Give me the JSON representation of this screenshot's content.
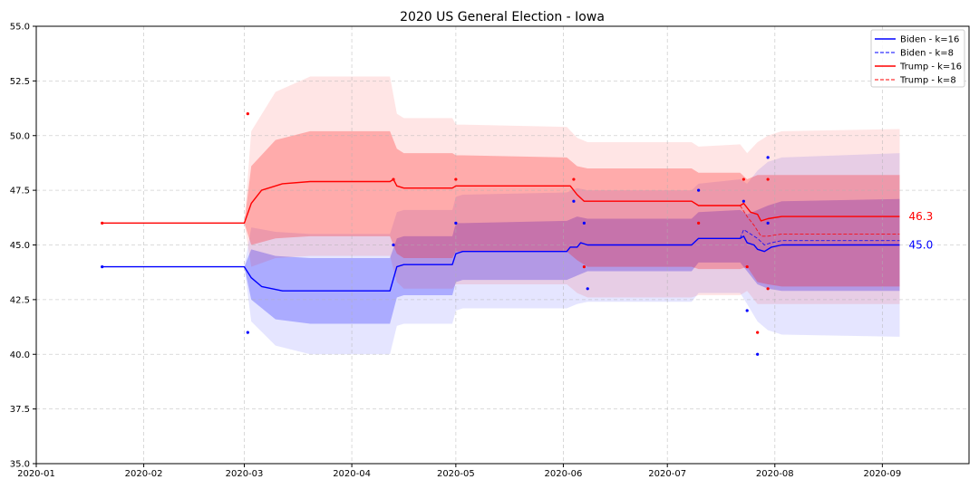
{
  "chart_data": {
    "type": "line",
    "title": "2020 US General Election - Iowa",
    "xlabel": "",
    "ylabel": "",
    "x_range": [
      "2020-01-01",
      "2020-09-26"
    ],
    "ylim": [
      35.0,
      55.0
    ],
    "x_ticks": [
      "2020-01",
      "2020-02",
      "2020-03",
      "2020-04",
      "2020-05",
      "2020-06",
      "2020-07",
      "2020-08",
      "2020-09"
    ],
    "x_tick_dates": [
      "2020-01-01",
      "2020-02-01",
      "2020-03-01",
      "2020-04-01",
      "2020-05-01",
      "2020-06-01",
      "2020-07-01",
      "2020-08-01",
      "2020-09-01"
    ],
    "y_ticks": [
      "35.0",
      "37.5",
      "40.0",
      "42.5",
      "45.0",
      "47.5",
      "50.0",
      "52.5",
      "55.0"
    ],
    "grid": true,
    "legend_position": "top-right",
    "colors": {
      "biden": "#0000ff",
      "trump": "#ff0000"
    },
    "series": [
      {
        "name": "Biden - k=16",
        "color": "#0000ff",
        "style": "solid",
        "points": [
          [
            "2020-01-20",
            44.0
          ],
          [
            "2020-03-01",
            44.0
          ],
          [
            "2020-03-03",
            43.5
          ],
          [
            "2020-03-06",
            43.1
          ],
          [
            "2020-03-12",
            42.9
          ],
          [
            "2020-04-12",
            42.9
          ],
          [
            "2020-04-14",
            44.0
          ],
          [
            "2020-04-16",
            44.1
          ],
          [
            "2020-04-30",
            44.1
          ],
          [
            "2020-05-01",
            44.6
          ],
          [
            "2020-05-03",
            44.7
          ],
          [
            "2020-06-02",
            44.7
          ],
          [
            "2020-06-03",
            44.9
          ],
          [
            "2020-06-05",
            44.9
          ],
          [
            "2020-06-06",
            45.1
          ],
          [
            "2020-06-08",
            45.0
          ],
          [
            "2020-07-08",
            45.0
          ],
          [
            "2020-07-10",
            45.3
          ],
          [
            "2020-07-22",
            45.3
          ],
          [
            "2020-07-23",
            45.4
          ],
          [
            "2020-07-24",
            45.1
          ],
          [
            "2020-07-26",
            45.0
          ],
          [
            "2020-07-27",
            44.8
          ],
          [
            "2020-07-29",
            44.7
          ],
          [
            "2020-07-31",
            44.9
          ],
          [
            "2020-08-03",
            45.0
          ],
          [
            "2020-09-06",
            45.0
          ]
        ]
      },
      {
        "name": "Biden - k=8",
        "color": "#0000ff",
        "style": "dashed",
        "points": [
          [
            "2020-07-22",
            45.3
          ],
          [
            "2020-07-23",
            45.7
          ],
          [
            "2020-07-25",
            45.5
          ],
          [
            "2020-07-27",
            45.3
          ],
          [
            "2020-07-29",
            45.0
          ],
          [
            "2020-07-31",
            45.1
          ],
          [
            "2020-08-03",
            45.2
          ],
          [
            "2020-09-06",
            45.2
          ]
        ]
      },
      {
        "name": "Trump - k=16",
        "color": "#ff0000",
        "style": "solid",
        "points": [
          [
            "2020-01-20",
            46.0
          ],
          [
            "2020-03-01",
            46.0
          ],
          [
            "2020-03-03",
            46.9
          ],
          [
            "2020-03-06",
            47.5
          ],
          [
            "2020-03-12",
            47.8
          ],
          [
            "2020-03-20",
            47.9
          ],
          [
            "2020-04-12",
            47.9
          ],
          [
            "2020-04-13",
            48.0
          ],
          [
            "2020-04-14",
            47.7
          ],
          [
            "2020-04-16",
            47.6
          ],
          [
            "2020-04-30",
            47.6
          ],
          [
            "2020-05-01",
            47.7
          ],
          [
            "2020-05-03",
            47.7
          ],
          [
            "2020-06-03",
            47.7
          ],
          [
            "2020-06-05",
            47.3
          ],
          [
            "2020-06-07",
            47.0
          ],
          [
            "2020-07-08",
            47.0
          ],
          [
            "2020-07-10",
            46.8
          ],
          [
            "2020-07-22",
            46.8
          ],
          [
            "2020-07-23",
            46.9
          ],
          [
            "2020-07-25",
            46.5
          ],
          [
            "2020-07-27",
            46.4
          ],
          [
            "2020-07-28",
            46.1
          ],
          [
            "2020-07-30",
            46.2
          ],
          [
            "2020-08-03",
            46.3
          ],
          [
            "2020-09-06",
            46.3
          ]
        ]
      },
      {
        "name": "Trump - k=8",
        "color": "#ff0000",
        "style": "dashed",
        "points": [
          [
            "2020-07-22",
            46.8
          ],
          [
            "2020-07-24",
            46.3
          ],
          [
            "2020-07-26",
            45.9
          ],
          [
            "2020-07-28",
            45.4
          ],
          [
            "2020-07-30",
            45.4
          ],
          [
            "2020-08-03",
            45.5
          ],
          [
            "2020-09-06",
            45.5
          ]
        ]
      }
    ],
    "bands": [
      {
        "color": "#0000ff",
        "opacity": 0.25,
        "points": [
          [
            "2020-01-20",
            44.0,
            44.0
          ],
          [
            "2020-03-01",
            44.0,
            44.0
          ],
          [
            "2020-03-03",
            42.5,
            44.8
          ],
          [
            "2020-03-10",
            41.6,
            44.5
          ],
          [
            "2020-03-20",
            41.4,
            44.4
          ],
          [
            "2020-04-12",
            41.4,
            44.4
          ],
          [
            "2020-04-14",
            42.6,
            45.3
          ],
          [
            "2020-04-16",
            42.7,
            45.4
          ],
          [
            "2020-04-30",
            42.7,
            45.4
          ],
          [
            "2020-05-01",
            43.3,
            46.0
          ],
          [
            "2020-05-03",
            43.4,
            46.0
          ],
          [
            "2020-06-02",
            43.4,
            46.1
          ],
          [
            "2020-06-05",
            43.6,
            46.3
          ],
          [
            "2020-06-08",
            43.8,
            46.2
          ],
          [
            "2020-07-08",
            43.8,
            46.2
          ],
          [
            "2020-07-10",
            44.2,
            46.5
          ],
          [
            "2020-07-22",
            44.2,
            46.6
          ],
          [
            "2020-07-24",
            43.8,
            46.4
          ],
          [
            "2020-07-27",
            43.2,
            46.6
          ],
          [
            "2020-07-30",
            43.0,
            46.8
          ],
          [
            "2020-08-03",
            42.9,
            47.0
          ],
          [
            "2020-09-06",
            42.9,
            47.1
          ]
        ]
      },
      {
        "color": "#0000ff",
        "opacity": 0.1,
        "points": [
          [
            "2020-01-20",
            44.0,
            44.0
          ],
          [
            "2020-03-01",
            44.0,
            44.0
          ],
          [
            "2020-03-03",
            41.5,
            45.8
          ],
          [
            "2020-03-10",
            40.4,
            45.6
          ],
          [
            "2020-03-20",
            40.0,
            45.5
          ],
          [
            "2020-04-12",
            40.0,
            45.5
          ],
          [
            "2020-04-14",
            41.3,
            46.5
          ],
          [
            "2020-04-16",
            41.4,
            46.6
          ],
          [
            "2020-04-30",
            41.4,
            46.6
          ],
          [
            "2020-05-01",
            42.0,
            47.2
          ],
          [
            "2020-05-03",
            42.1,
            47.3
          ],
          [
            "2020-06-02",
            42.1,
            47.4
          ],
          [
            "2020-06-05",
            42.3,
            47.6
          ],
          [
            "2020-06-08",
            42.4,
            47.5
          ],
          [
            "2020-07-08",
            42.4,
            47.5
          ],
          [
            "2020-07-10",
            42.8,
            47.8
          ],
          [
            "2020-07-22",
            42.8,
            48.0
          ],
          [
            "2020-07-24",
            42.3,
            47.8
          ],
          [
            "2020-07-27",
            41.5,
            48.4
          ],
          [
            "2020-07-30",
            41.1,
            48.8
          ],
          [
            "2020-08-03",
            40.9,
            49.0
          ],
          [
            "2020-09-06",
            40.8,
            49.2
          ]
        ]
      },
      {
        "color": "#ff0000",
        "opacity": 0.25,
        "points": [
          [
            "2020-01-20",
            46.0,
            46.0
          ],
          [
            "2020-03-01",
            46.0,
            46.0
          ],
          [
            "2020-03-03",
            45.0,
            48.6
          ],
          [
            "2020-03-10",
            45.3,
            49.8
          ],
          [
            "2020-03-20",
            45.4,
            50.2
          ],
          [
            "2020-04-12",
            45.4,
            50.2
          ],
          [
            "2020-04-14",
            44.6,
            49.4
          ],
          [
            "2020-04-16",
            44.4,
            49.2
          ],
          [
            "2020-04-30",
            44.4,
            49.2
          ],
          [
            "2020-05-01",
            44.7,
            49.1
          ],
          [
            "2020-05-03",
            44.7,
            49.1
          ],
          [
            "2020-06-02",
            44.7,
            49.0
          ],
          [
            "2020-06-05",
            44.3,
            48.6
          ],
          [
            "2020-06-08",
            44.0,
            48.5
          ],
          [
            "2020-07-08",
            44.0,
            48.5
          ],
          [
            "2020-07-10",
            43.9,
            48.3
          ],
          [
            "2020-07-22",
            43.9,
            48.3
          ],
          [
            "2020-07-24",
            44.0,
            48.0
          ],
          [
            "2020-07-27",
            43.3,
            48.2
          ],
          [
            "2020-07-30",
            43.2,
            48.2
          ],
          [
            "2020-08-03",
            43.1,
            48.2
          ],
          [
            "2020-09-06",
            43.1,
            48.2
          ]
        ]
      },
      {
        "color": "#ff0000",
        "opacity": 0.1,
        "points": [
          [
            "2020-01-20",
            46.0,
            46.0
          ],
          [
            "2020-03-01",
            46.0,
            46.0
          ],
          [
            "2020-03-03",
            44.0,
            50.2
          ],
          [
            "2020-03-10",
            44.4,
            52.0
          ],
          [
            "2020-03-20",
            44.5,
            52.7
          ],
          [
            "2020-04-12",
            44.5,
            52.7
          ],
          [
            "2020-04-14",
            43.3,
            51.0
          ],
          [
            "2020-04-16",
            43.0,
            50.8
          ],
          [
            "2020-04-30",
            43.0,
            50.8
          ],
          [
            "2020-05-01",
            43.2,
            50.5
          ],
          [
            "2020-05-03",
            43.2,
            50.5
          ],
          [
            "2020-06-02",
            43.2,
            50.4
          ],
          [
            "2020-06-05",
            42.8,
            49.9
          ],
          [
            "2020-06-08",
            42.6,
            49.7
          ],
          [
            "2020-07-08",
            42.6,
            49.7
          ],
          [
            "2020-07-10",
            42.7,
            49.5
          ],
          [
            "2020-07-22",
            42.7,
            49.6
          ],
          [
            "2020-07-24",
            42.9,
            49.2
          ],
          [
            "2020-07-27",
            42.3,
            49.7
          ],
          [
            "2020-07-30",
            42.3,
            50.0
          ],
          [
            "2020-08-03",
            42.3,
            50.2
          ],
          [
            "2020-09-06",
            42.3,
            50.3
          ]
        ]
      }
    ],
    "polls": [
      {
        "date": "2020-01-20",
        "value": 44.0,
        "candidate": "Biden"
      },
      {
        "date": "2020-01-20",
        "value": 46.0,
        "candidate": "Trump"
      },
      {
        "date": "2020-03-02",
        "value": 41.0,
        "candidate": "Biden"
      },
      {
        "date": "2020-03-02",
        "value": 51.0,
        "candidate": "Trump"
      },
      {
        "date": "2020-04-13",
        "value": 45.0,
        "candidate": "Biden"
      },
      {
        "date": "2020-04-13",
        "value": 48.0,
        "candidate": "Trump"
      },
      {
        "date": "2020-05-01",
        "value": 46.0,
        "candidate": "Biden"
      },
      {
        "date": "2020-05-01",
        "value": 48.0,
        "candidate": "Trump"
      },
      {
        "date": "2020-06-04",
        "value": 47.0,
        "candidate": "Biden"
      },
      {
        "date": "2020-06-04",
        "value": 48.0,
        "candidate": "Trump"
      },
      {
        "date": "2020-06-07",
        "value": 46.0,
        "candidate": "Biden"
      },
      {
        "date": "2020-06-07",
        "value": 44.0,
        "candidate": "Trump"
      },
      {
        "date": "2020-06-08",
        "value": 43.0,
        "candidate": "Biden"
      },
      {
        "date": "2020-07-10",
        "value": 47.5,
        "candidate": "Biden"
      },
      {
        "date": "2020-07-10",
        "value": 46.0,
        "candidate": "Trump"
      },
      {
        "date": "2020-07-23",
        "value": 47.0,
        "candidate": "Biden"
      },
      {
        "date": "2020-07-23",
        "value": 48.0,
        "candidate": "Trump"
      },
      {
        "date": "2020-07-24",
        "value": 42.0,
        "candidate": "Biden"
      },
      {
        "date": "2020-07-24",
        "value": 44.0,
        "candidate": "Trump"
      },
      {
        "date": "2020-07-27",
        "value": 40.0,
        "candidate": "Biden"
      },
      {
        "date": "2020-07-27",
        "value": 41.0,
        "candidate": "Trump"
      },
      {
        "date": "2020-07-30",
        "value": 49.0,
        "candidate": "Biden"
      },
      {
        "date": "2020-07-30",
        "value": 46.0,
        "candidate": "Biden"
      },
      {
        "date": "2020-07-30",
        "value": 48.0,
        "candidate": "Trump"
      },
      {
        "date": "2020-07-30",
        "value": 43.0,
        "candidate": "Trump"
      }
    ],
    "end_labels": [
      {
        "text": "46.3",
        "value": 46.3,
        "color": "#ff0000"
      },
      {
        "text": "45.0",
        "value": 45.0,
        "color": "#0000ff"
      }
    ],
    "label_date": "2020-09-06"
  }
}
